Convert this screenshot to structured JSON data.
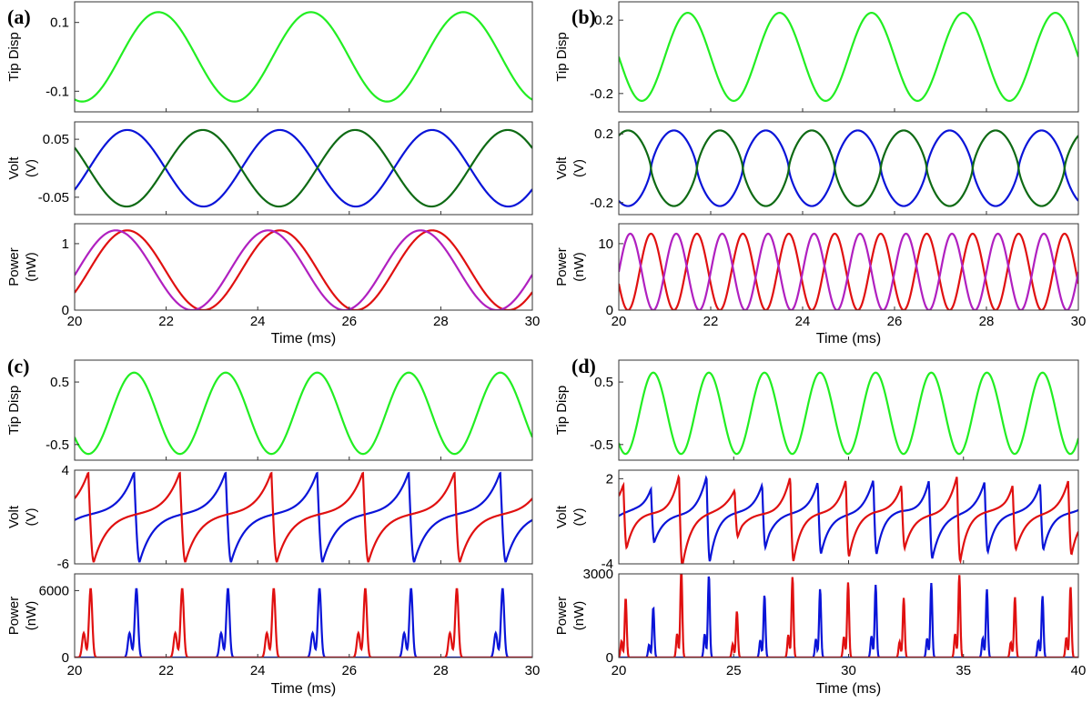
{
  "figure": {
    "panels": [
      {
        "label": "(a)",
        "x_min": 20,
        "x_max": 30,
        "x_ticks": [
          20,
          22,
          24,
          26,
          28,
          30
        ],
        "x_tick_labels": [
          "20",
          "22",
          "24",
          "26",
          "28",
          "30"
        ],
        "x_label": "Time (ms)",
        "subplots": [
          {
            "name": "tip-disp",
            "ylabel": [
              "Tip Disp"
            ],
            "y_range": [
              -0.16,
              0.16
            ],
            "y_ticks": [
              0.1,
              -0.1
            ],
            "y_tick_labels": [
              "0.1",
              "-0.1"
            ]
          },
          {
            "name": "volt",
            "ylabel": [
              "Volt",
              "(V)"
            ],
            "y_range": [
              -0.08,
              0.08
            ],
            "y_ticks": [
              0.05,
              -0.05
            ],
            "y_tick_labels": [
              "0.05",
              "-0.05"
            ]
          },
          {
            "name": "power",
            "ylabel": [
              "Power",
              "(nW)"
            ],
            "y_range": [
              0,
              1.3
            ],
            "y_ticks": [
              1,
              0
            ],
            "y_tick_labels": [
              "1",
              "0"
            ]
          }
        ]
      },
      {
        "label": "(b)",
        "x_min": 20,
        "x_max": 30,
        "x_ticks": [
          20,
          22,
          24,
          26,
          28,
          30
        ],
        "x_tick_labels": [
          "20",
          "22",
          "24",
          "26",
          "28",
          "30"
        ],
        "x_label": "Time (ms)",
        "subplots": [
          {
            "name": "tip-disp",
            "ylabel": [
              "Tip Disp"
            ],
            "y_range": [
              -0.3,
              0.3
            ],
            "y_ticks": [
              0.2,
              -0.2
            ],
            "y_tick_labels": [
              "0.2",
              "-0.2"
            ]
          },
          {
            "name": "volt",
            "ylabel": [
              "Volt",
              "(V)"
            ],
            "y_range": [
              -0.27,
              0.27
            ],
            "y_ticks": [
              0.2,
              -0.2
            ],
            "y_tick_labels": [
              "0.2",
              "-0.2"
            ]
          },
          {
            "name": "power",
            "ylabel": [
              "Power",
              "(nW)"
            ],
            "y_range": [
              0,
              13
            ],
            "y_ticks": [
              10,
              0
            ],
            "y_tick_labels": [
              "10",
              "0"
            ]
          }
        ]
      },
      {
        "label": "(c)",
        "x_min": 20,
        "x_max": 30,
        "x_ticks": [
          20,
          22,
          24,
          26,
          28,
          30
        ],
        "x_tick_labels": [
          "20",
          "22",
          "24",
          "26",
          "28",
          "30"
        ],
        "x_label": "Time (ms)",
        "subplots": [
          {
            "name": "tip-disp",
            "ylabel": [
              "Tip Disp"
            ],
            "y_range": [
              -0.75,
              0.85
            ],
            "y_ticks": [
              0.5,
              -0.5
            ],
            "y_tick_labels": [
              "0.5",
              "-0.5"
            ]
          },
          {
            "name": "volt",
            "ylabel": [
              "Volt",
              "(V)"
            ],
            "y_range": [
              -6,
              4
            ],
            "y_ticks": [
              4,
              -6
            ],
            "y_tick_labels": [
              "4",
              "-6"
            ]
          },
          {
            "name": "power",
            "ylabel": [
              "Power",
              "(nW)"
            ],
            "y_range": [
              0,
              7500
            ],
            "y_ticks": [
              6000,
              0
            ],
            "y_tick_labels": [
              "6000",
              "0"
            ]
          }
        ]
      },
      {
        "label": "(d)",
        "x_min": 20,
        "x_max": 40,
        "x_ticks": [
          20,
          25,
          30,
          35,
          40
        ],
        "x_tick_labels": [
          "20",
          "25",
          "30",
          "35",
          "40"
        ],
        "x_label": "Time (ms)",
        "subplots": [
          {
            "name": "tip-disp",
            "ylabel": [
              "Tip Disp"
            ],
            "y_range": [
              -0.75,
              0.85
            ],
            "y_ticks": [
              0.5,
              -0.5
            ],
            "y_tick_labels": [
              "0.5",
              "-0.5"
            ]
          },
          {
            "name": "volt",
            "ylabel": [
              "Volt",
              "(V)"
            ],
            "y_range": [
              -4,
              2.6
            ],
            "y_ticks": [
              2,
              -4
            ],
            "y_tick_labels": [
              "2",
              "-4"
            ]
          },
          {
            "name": "power",
            "ylabel": [
              "Power",
              "(nW)"
            ],
            "y_range": [
              0,
              3000
            ],
            "y_ticks": [
              3000,
              0
            ],
            "y_tick_labels": [
              "3000",
              "0"
            ]
          }
        ]
      }
    ]
  },
  "chart_data": [
    {
      "panel": "(a)",
      "type": "line",
      "x_range": [
        20,
        30
      ],
      "subplots": [
        {
          "ylabel": "Tip Disp",
          "series": [
            {
              "name": "tip",
              "color": "#22ee22",
              "model": "sine",
              "amp": 0.13,
              "period_ms": 3.33,
              "phase_ms": 21.83,
              "offset": 0
            }
          ]
        },
        {
          "ylabel": "Volt (V)",
          "series": [
            {
              "name": "v1",
              "color": "#0a14d8",
              "model": "sine",
              "amp": 0.066,
              "period_ms": 3.33,
              "phase_ms": 21.15,
              "offset": 0
            },
            {
              "name": "v2",
              "color": "#0e6a14",
              "model": "sine",
              "amp": 0.066,
              "period_ms": 3.33,
              "phase_ms": 22.8,
              "offset": 0
            }
          ]
        },
        {
          "ylabel": "Power (nW)",
          "series": [
            {
              "name": "p1",
              "color": "#e01010",
              "model": "sine2",
              "amp": 1.2,
              "period_ms": 3.33,
              "phase_ms": 21.15
            },
            {
              "name": "p2",
              "color": "#b020c0",
              "model": "sine2",
              "amp": 1.2,
              "period_ms": 3.33,
              "phase_ms": 20.9
            }
          ]
        }
      ]
    },
    {
      "panel": "(b)",
      "type": "line",
      "x_range": [
        20,
        30
      ],
      "subplots": [
        {
          "ylabel": "Tip Disp",
          "series": [
            {
              "name": "tip",
              "color": "#22ee22",
              "model": "sine",
              "amp": 0.24,
              "period_ms": 2.0,
              "phase_ms": 21.5,
              "offset": 0
            }
          ]
        },
        {
          "ylabel": "Volt (V)",
          "series": [
            {
              "name": "v1",
              "color": "#0a14d8",
              "model": "tri",
              "amp": 0.22,
              "period_ms": 1.0,
              "phase_ms": 21.2,
              "offset": 0
            },
            {
              "name": "v2",
              "color": "#0e6a14",
              "model": "tri",
              "amp": 0.22,
              "period_ms": 1.0,
              "phase_ms": 20.2,
              "offset": 0
            }
          ]
        },
        {
          "ylabel": "Power (nW)",
          "series": [
            {
              "name": "p1",
              "color": "#e01010",
              "model": "sine2",
              "amp": 11.5,
              "period_ms": 1.0,
              "phase_ms": 20.7
            },
            {
              "name": "p2",
              "color": "#b020c0",
              "model": "sine2",
              "amp": 11.5,
              "period_ms": 1.0,
              "phase_ms": 20.25
            }
          ]
        }
      ]
    },
    {
      "panel": "(c)",
      "type": "line",
      "x_range": [
        20,
        30
      ],
      "subplots": [
        {
          "ylabel": "Tip Disp",
          "series": [
            {
              "name": "tip",
              "color": "#22ee22",
              "model": "sine",
              "amp": 0.65,
              "period_ms": 2.0,
              "phase_ms": 21.3,
              "offset": 0
            }
          ]
        },
        {
          "ylabel": "Volt (V)",
          "series": [
            {
              "name": "v1",
              "color": "#0a14d8",
              "model": "saw",
              "peak": 3.8,
              "trough": -5.8,
              "base": -0.5,
              "period_ms": 2.0,
              "peak_ms": 21.3
            },
            {
              "name": "v2",
              "color": "#e01010",
              "model": "saw",
              "peak": 3.8,
              "trough": -5.8,
              "base": -0.5,
              "period_ms": 2.0,
              "peak_ms": 20.3
            }
          ]
        },
        {
          "ylabel": "Power (nW)",
          "series": [
            {
              "name": "p1",
              "color": "#0a14d8",
              "model": "spike",
              "peak": 6200,
              "shoulder": 2200,
              "period_ms": 2.0,
              "peak_ms": 21.35
            },
            {
              "name": "p2",
              "color": "#e01010",
              "model": "spike",
              "peak": 6200,
              "shoulder": 2200,
              "period_ms": 2.0,
              "peak_ms": 20.35
            }
          ]
        }
      ]
    },
    {
      "panel": "(d)",
      "type": "line",
      "x_range": [
        20,
        40
      ],
      "subplots": [
        {
          "ylabel": "Tip Disp",
          "series": [
            {
              "name": "tip",
              "color": "#22ee22",
              "model": "sine",
              "amp": 0.65,
              "period_ms": 2.42,
              "phase_ms": 21.5,
              "offset": 0
            }
          ]
        },
        {
          "ylabel": "Volt (V)",
          "series": [
            {
              "name": "v1",
              "color": "#0a14d8",
              "model": "saw",
              "peak": 2.1,
              "trough": -3.8,
              "base": -0.4,
              "period_ms": 2.42,
              "peak_ms": 21.4,
              "modulated": true
            },
            {
              "name": "v2",
              "color": "#e01010",
              "model": "saw",
              "peak": 2.1,
              "trough": -3.8,
              "base": -0.4,
              "period_ms": 2.42,
              "peak_ms": 20.2,
              "modulated": true
            }
          ]
        },
        {
          "ylabel": "Power (nW)",
          "series": [
            {
              "name": "p1",
              "color": "#0a14d8",
              "model": "spike",
              "peak": 2900,
              "shoulder": 800,
              "period_ms": 2.42,
              "peak_ms": 21.5,
              "modulated": true
            },
            {
              "name": "p2",
              "color": "#e01010",
              "model": "spike",
              "peak": 2900,
              "shoulder": 800,
              "period_ms": 2.42,
              "peak_ms": 20.3,
              "modulated": true
            }
          ]
        }
      ]
    }
  ]
}
